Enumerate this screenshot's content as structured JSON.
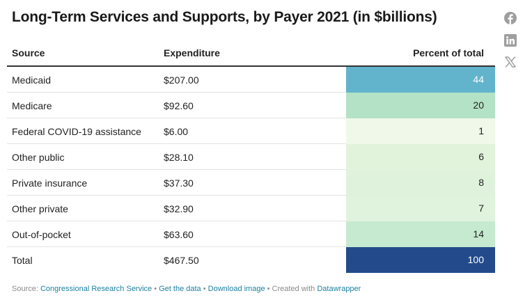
{
  "title": "Long-Term Services and Supports, by Payer 2021 (in $billions)",
  "share": {
    "icons": [
      "facebook-icon",
      "linkedin-icon",
      "x-icon"
    ]
  },
  "table": {
    "headers": {
      "source": "Source",
      "expenditure": "Expenditure",
      "percent": "Percent of total"
    },
    "rows": [
      {
        "source": "Medicaid",
        "expenditure": "$207.00",
        "percent": "44",
        "bg": "#62b4cc",
        "fg": "#ffffff"
      },
      {
        "source": "Medicare",
        "expenditure": "$92.60",
        "percent": "20",
        "bg": "#b3e2c6",
        "fg": "#222222"
      },
      {
        "source": "Federal COVID-19 assistance",
        "expenditure": "$6.00",
        "percent": "1",
        "bg": "#eff8e9",
        "fg": "#222222"
      },
      {
        "source": "Other public",
        "expenditure": "$28.10",
        "percent": "6",
        "bg": "#e2f3dc",
        "fg": "#222222"
      },
      {
        "source": "Private insurance",
        "expenditure": "$37.30",
        "percent": "8",
        "bg": "#def2dc",
        "fg": "#222222"
      },
      {
        "source": "Other private",
        "expenditure": "$32.90",
        "percent": "7",
        "bg": "#e0f3dc",
        "fg": "#222222"
      },
      {
        "source": "Out-of-pocket",
        "expenditure": "$63.60",
        "percent": "14",
        "bg": "#c6ead0",
        "fg": "#222222"
      },
      {
        "source": "Total",
        "expenditure": "$467.50",
        "percent": "100",
        "bg": "#234b8c",
        "fg": "#ffffff"
      }
    ]
  },
  "footer": {
    "source_prefix": "Source: ",
    "source_link": "Congressional Research Service",
    "sep1": " • ",
    "get_data": "Get the data",
    "sep2": " • ",
    "download": "Download image",
    "created_with": " • Created with ",
    "datawrapper": "Datawrapper"
  }
}
